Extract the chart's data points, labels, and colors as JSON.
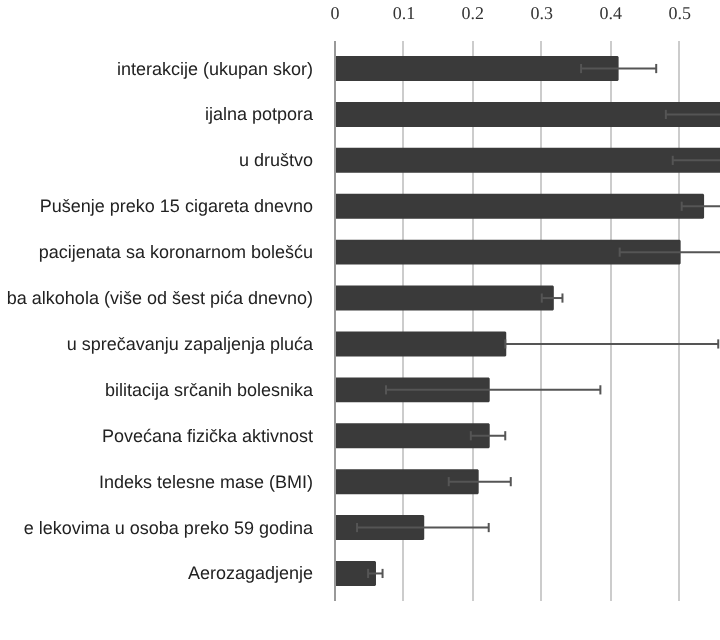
{
  "chart_data": {
    "type": "bar",
    "orientation": "horizontal",
    "categories": [
      "interakcije (ukupan skor)",
      "ijalna potpora",
      "u društvo",
      "Pušenje preko 15 cigareta dnevno",
      "pacijenata sa koronarnom bolešću",
      "ba alkohola (više od šest pića dnevno)",
      "u sprečavanju zapaljenja pluća",
      "bilitacija srčanih bolesnika",
      "Povećana fizička aktivnost",
      "Indeks telesne mase (BMI)",
      "e lekovima u osoba preko 59 godina",
      "Aerozagadjenje"
    ],
    "values": [
      0.41,
      0.56,
      0.56,
      0.534,
      0.5,
      0.316,
      0.247,
      0.223,
      0.223,
      0.207,
      0.128,
      0.058
    ],
    "errors": [
      [
        0.357,
        0.466
      ],
      [
        0.48,
        0.56
      ],
      [
        0.49,
        0.56
      ],
      [
        0.503,
        0.56
      ],
      [
        0.413,
        0.56
      ],
      [
        0.3,
        0.33
      ],
      [
        0.247,
        0.556
      ],
      [
        0.074,
        0.385
      ],
      [
        0.197,
        0.247
      ],
      [
        0.165,
        0.255
      ],
      [
        0.032,
        0.223
      ],
      [
        0.048,
        0.069
      ]
    ],
    "color": "#3a3a3a",
    "xlim": [
      0,
      0.56
    ],
    "xticks": [
      0,
      0.1,
      0.2,
      0.3,
      0.4,
      0.5
    ],
    "grid": "x"
  }
}
